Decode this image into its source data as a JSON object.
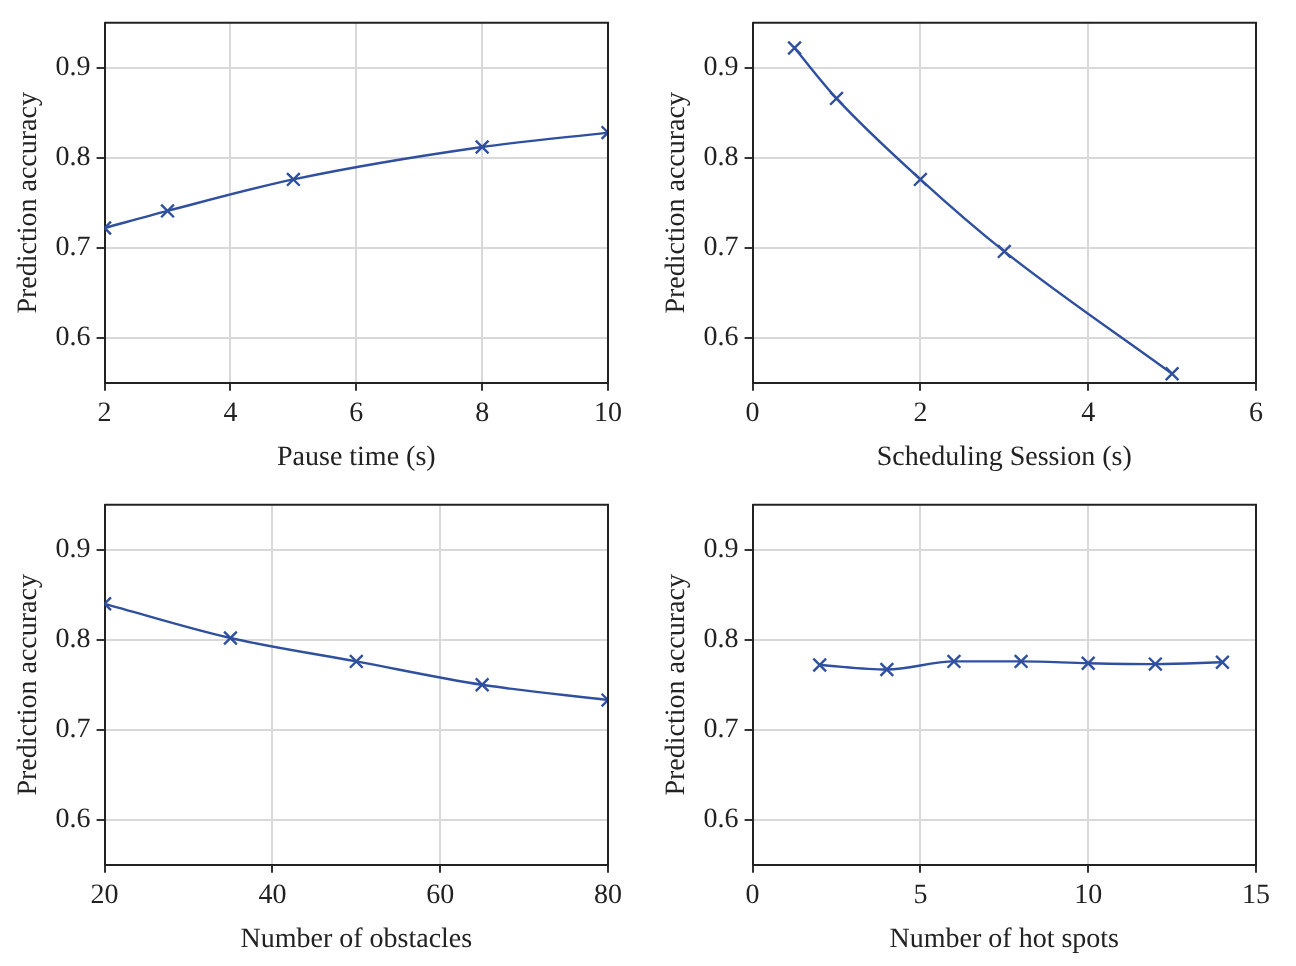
{
  "chart_data": [
    {
      "type": "line",
      "xlabel": "Pause time (s)",
      "ylabel": "Prediction accuracy",
      "x": [
        2,
        3,
        5,
        8,
        10
      ],
      "series": [
        {
          "color": "#2f4f9f",
          "values": [
            0.722,
            0.741,
            0.776,
            0.812,
            0.828
          ]
        }
      ],
      "xlim": [
        2,
        10
      ],
      "xticks": [
        2,
        4,
        6,
        8,
        10
      ],
      "ylim": [
        0.55,
        0.95
      ],
      "yticks": [
        0.6,
        0.7,
        0.8,
        0.9
      ],
      "grid": true,
      "marker": "cross",
      "line_style": "solid"
    },
    {
      "type": "line",
      "xlabel": "Scheduling Session (s)",
      "ylabel": "Prediction accuracy",
      "x": [
        0.5,
        1,
        2,
        3,
        5
      ],
      "series": [
        {
          "color": "#2f4f9f",
          "values": [
            0.922,
            0.866,
            0.776,
            0.696,
            0.56
          ]
        }
      ],
      "xlim": [
        0,
        6
      ],
      "xticks": [
        0,
        2,
        4,
        6
      ],
      "ylim": [
        0.55,
        0.95
      ],
      "yticks": [
        0.6,
        0.7,
        0.8,
        0.9
      ],
      "grid": true,
      "marker": "cross",
      "line_style": "solid"
    },
    {
      "type": "line",
      "xlabel": "Number of obstacles",
      "ylabel": "Prediction accuracy",
      "x": [
        20,
        35,
        50,
        65,
        80
      ],
      "series": [
        {
          "color": "#2f4f9f",
          "values": [
            0.84,
            0.802,
            0.776,
            0.75,
            0.733
          ]
        }
      ],
      "xlim": [
        20,
        80
      ],
      "xticks": [
        20,
        40,
        60,
        80
      ],
      "ylim": [
        0.55,
        0.95
      ],
      "yticks": [
        0.6,
        0.7,
        0.8,
        0.9
      ],
      "grid": true,
      "marker": "cross",
      "line_style": "solid"
    },
    {
      "type": "line",
      "xlabel": "Number of hot spots",
      "ylabel": "Prediction accuracy",
      "x": [
        2,
        4,
        6,
        8,
        10,
        12,
        14
      ],
      "series": [
        {
          "color": "#2f4f9f",
          "values": [
            0.772,
            0.767,
            0.776,
            0.776,
            0.774,
            0.773,
            0.775
          ]
        }
      ],
      "xlim": [
        0,
        15
      ],
      "xticks": [
        0,
        5,
        10,
        15
      ],
      "ylim": [
        0.55,
        0.95
      ],
      "yticks": [
        0.6,
        0.7,
        0.8,
        0.9
      ],
      "grid": true,
      "marker": "cross",
      "line_style": "solid"
    }
  ]
}
